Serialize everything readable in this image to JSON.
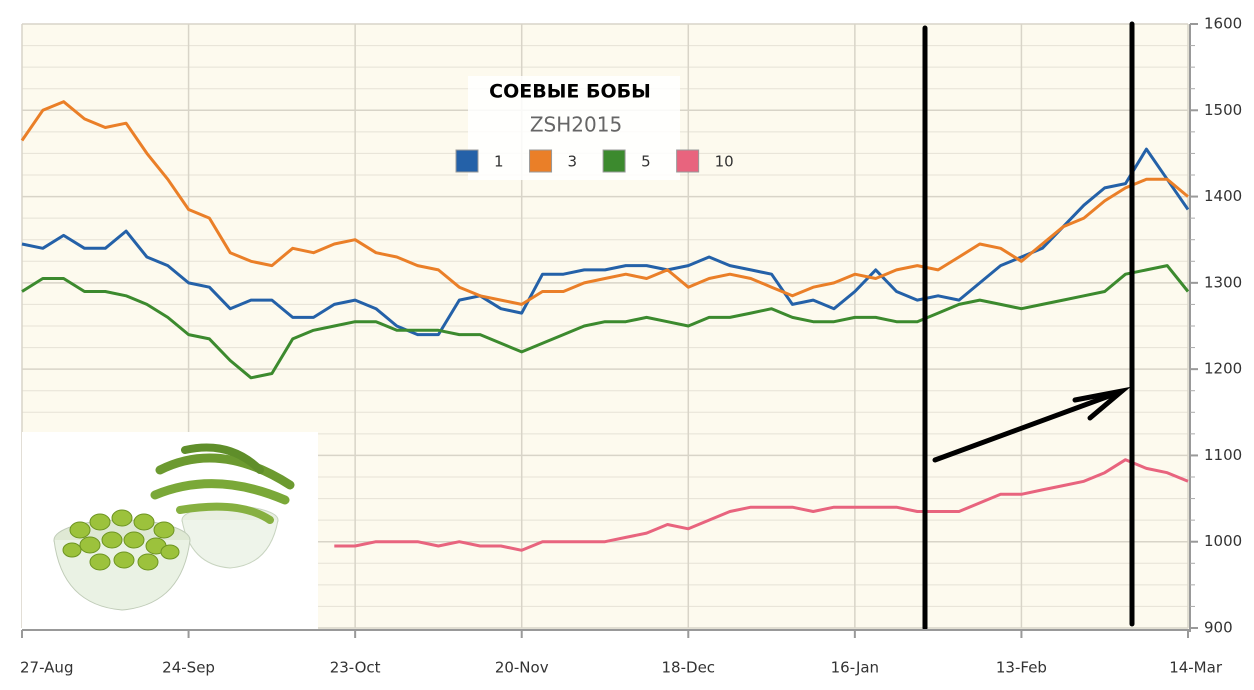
{
  "chart_data": {
    "type": "line",
    "title": "СОЕВЫЕ БОБЫ",
    "subtitle": "ZSH2015",
    "categories": [
      "27-Aug",
      null,
      null,
      null,
      null,
      null,
      null,
      null,
      "24-Sep",
      null,
      null,
      null,
      null,
      null,
      null,
      null,
      "23-Oct",
      null,
      null,
      null,
      null,
      null,
      null,
      null,
      "20-Nov",
      null,
      null,
      null,
      null,
      null,
      null,
      null,
      "18-Dec",
      null,
      null,
      null,
      null,
      null,
      null,
      null,
      "16-Jan",
      null,
      null,
      null,
      null,
      null,
      null,
      null,
      "13-Feb",
      null,
      null,
      null,
      null,
      null,
      null,
      null,
      "14-Mar"
    ],
    "series": [
      {
        "name": "1",
        "color": "#2461a8",
        "values": [
          1345,
          1340,
          1355,
          1340,
          1340,
          1360,
          1330,
          1320,
          1300,
          1295,
          1270,
          1280,
          1280,
          1260,
          1260,
          1275,
          1280,
          1270,
          1250,
          1240,
          1240,
          1280,
          1285,
          1270,
          1265,
          1310,
          1310,
          1315,
          1315,
          1320,
          1320,
          1315,
          1320,
          1330,
          1320,
          1315,
          1310,
          1275,
          1280,
          1270,
          1290,
          1315,
          1290,
          1280,
          1285,
          1280,
          1300,
          1320,
          1330,
          1340,
          1365,
          1390,
          1410,
          1415,
          1455,
          1420,
          1385
        ]
      },
      {
        "name": "3",
        "color": "#ea7f28",
        "values": [
          1465,
          1500,
          1510,
          1490,
          1480,
          1485,
          1450,
          1420,
          1385,
          1375,
          1335,
          1325,
          1320,
          1340,
          1335,
          1345,
          1350,
          1335,
          1330,
          1320,
          1315,
          1295,
          1285,
          1280,
          1275,
          1290,
          1290,
          1300,
          1305,
          1310,
          1305,
          1315,
          1295,
          1305,
          1310,
          1305,
          1295,
          1285,
          1295,
          1300,
          1310,
          1305,
          1315,
          1320,
          1315,
          1330,
          1345,
          1340,
          1325,
          1345,
          1365,
          1375,
          1395,
          1410,
          1420,
          1420,
          1400
        ]
      },
      {
        "name": "5",
        "color": "#3c8a2e",
        "values": [
          1290,
          1305,
          1305,
          1290,
          1290,
          1285,
          1275,
          1260,
          1240,
          1235,
          1210,
          1190,
          1195,
          1235,
          1245,
          1250,
          1255,
          1255,
          1245,
          1245,
          1245,
          1240,
          1240,
          1230,
          1220,
          1230,
          1240,
          1250,
          1255,
          1255,
          1260,
          1255,
          1250,
          1260,
          1260,
          1265,
          1270,
          1260,
          1255,
          1255,
          1260,
          1260,
          1255,
          1255,
          1265,
          1275,
          1280,
          1275,
          1270,
          1275,
          1280,
          1285,
          1290,
          1310,
          1315,
          1320,
          1290
        ]
      },
      {
        "name": "10",
        "color": "#e8647e",
        "values": [
          null,
          null,
          null,
          null,
          null,
          null,
          null,
          null,
          null,
          null,
          null,
          null,
          null,
          null,
          null,
          995,
          995,
          1000,
          1000,
          1000,
          995,
          1000,
          995,
          995,
          990,
          1000,
          1000,
          1000,
          1000,
          1005,
          1010,
          1020,
          1015,
          1025,
          1035,
          1040,
          1040,
          1040,
          1035,
          1040,
          1040,
          1040,
          1040,
          1035,
          1035,
          1035,
          1045,
          1055,
          1055,
          1060,
          1065,
          1070,
          1080,
          1095,
          1085,
          1080,
          1070
        ]
      }
    ],
    "ylim": [
      900,
      1600
    ],
    "yticks": [
      900,
      1000,
      1100,
      1200,
      1300,
      1400,
      1500,
      1600
    ],
    "grid": true
  }
}
